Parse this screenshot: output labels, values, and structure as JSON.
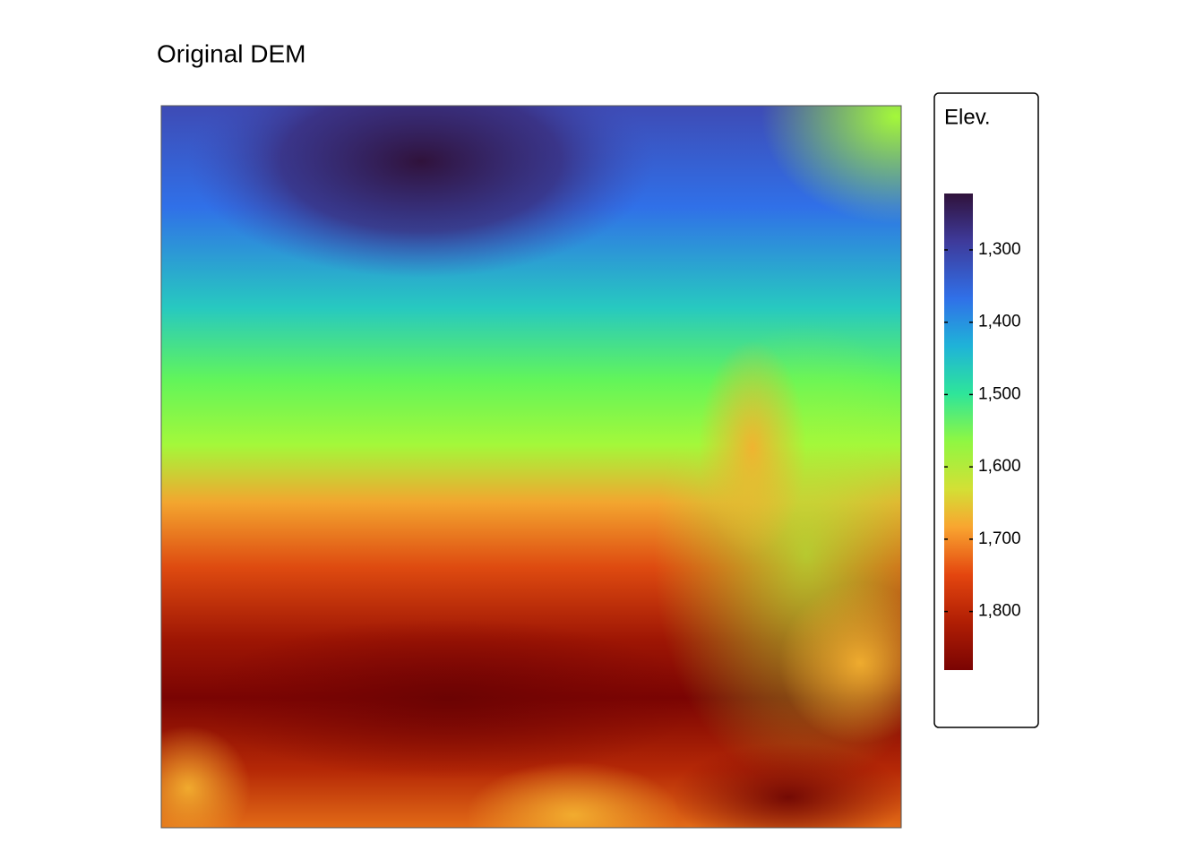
{
  "title": "Original DEM",
  "legend": {
    "title": "Elev.",
    "lim": [
      1222,
      1881
    ],
    "ticks": [
      {
        "value": 1300,
        "label": "1,300"
      },
      {
        "value": 1400,
        "label": "1,400"
      },
      {
        "value": 1500,
        "label": "1,500"
      },
      {
        "value": 1600,
        "label": "1,600"
      },
      {
        "value": 1700,
        "label": "1,700"
      },
      {
        "value": 1800,
        "label": "1,800"
      }
    ]
  }
}
